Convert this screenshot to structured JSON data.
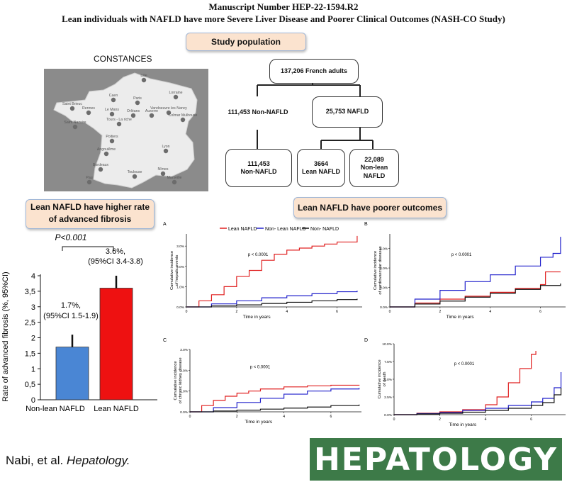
{
  "header": {
    "manuscript": "Manuscript Number HEP-22-1594.R2",
    "title": "Lean individuals with NAFLD have more Severe Liver Disease and Poorer Clinical Outcomes (NASH-CO Study)"
  },
  "study_population": {
    "pill": "Study population",
    "map_title": "CONSTANCES",
    "cities": [
      "Lille",
      "Caen",
      "Paris",
      "Lorraine",
      "Vandoeuvre les Nancy",
      "Saint Brieuc",
      "Rennes",
      "Le Mans",
      "Orléans",
      "Auxerre",
      "Colmar Mulhouse",
      "Saint Nazaire",
      "Tours - La riche",
      "Poitiers",
      "Angoulême",
      "Lyon",
      "Bordeaux",
      "Toulouse",
      "Nîmes",
      "Pau",
      "Marseille"
    ],
    "flow": {
      "top": "137,206 French adults",
      "left": "111,453 Non-NAFLD",
      "right": "25,753 NAFLD",
      "bottom_left_1": "111,453",
      "bottom_left_2": "Non-NAFLD",
      "bottom_mid_1": "3664",
      "bottom_mid_2": "Lean NAFLD",
      "bottom_right_1": "22,089",
      "bottom_right_2": "Non-lean NAFLD"
    }
  },
  "fibrosis": {
    "pill_line1": "Lean NAFLD have higher rate",
    "pill_line2": "of advanced fibrosis",
    "pvalue": "P<0.001",
    "ylabel": "Rate of advanced fibrosis (%, 95%CI)",
    "bar1_label_1": "1.7%,",
    "bar1_label_2": "(95%CI 1.5-1.9)",
    "bar2_label_1": "3.6%,",
    "bar2_label_2": "(95%CI 3.4-3.8)",
    "colors": {
      "non_lean": "#4a86d4",
      "lean": "#ee1111"
    }
  },
  "outcomes": {
    "pill": "Lean NAFLD have poorer outcomes",
    "legend": [
      "Lean NAFLD",
      "Non- Lean NAFLD",
      "Non- NAFLD"
    ],
    "panel_letters": [
      "A",
      "B",
      "C",
      "D"
    ],
    "pvalue_A": "p < 0.0001",
    "pvalue_B": "p < 0.0001",
    "pvalue_C": "p < 0.0001",
    "pvalue_D": "p < 0.0001",
    "xlabel": "Time in years",
    "ylabel_A": [
      "Cumulative incidence",
      "of hepatic events"
    ],
    "ylabel_B": [
      "Cumulative incidence",
      "of cardiovascular diseases"
    ],
    "ylabel_C": [
      "Cumulative incidence",
      "of chronic kidney disease"
    ],
    "ylabel_D": [
      "Cumulative incidence",
      "of death"
    ],
    "colors": {
      "lean": "#e02020",
      "non_lean": "#2222cc",
      "non_nafld": "#111111"
    }
  },
  "footer": {
    "ref_prefix": "Nabi, et al. ",
    "ref_journal": "Hepatology.",
    "logo": "HEPATOLOGY"
  },
  "chart_data": [
    {
      "type": "bar",
      "categories": [
        "Non-lean NAFLD",
        "Lean NAFLD"
      ],
      "values": [
        1.7,
        3.6
      ],
      "ci": [
        [
          1.5,
          1.9
        ],
        [
          3.4,
          3.8
        ]
      ],
      "ylabel": "Rate of advanced fibrosis (%, 95%CI)",
      "ylim": [
        0,
        4
      ],
      "yticks": [
        "0",
        "0,5",
        "1",
        "1,5",
        "2",
        "2,5",
        "3",
        "3,5",
        "4"
      ],
      "annotations": [
        "P<0.001",
        "1.7%, (95%CI 1.5-1.9)",
        "3.6%, (95%CI 3.4-3.8)"
      ]
    },
    {
      "type": "line",
      "panel": "A",
      "ylabel": "Cumulative incidence of hepatic events",
      "xlabel": "Time in years",
      "yticks": [
        "0.0%",
        "1.0%",
        "2.0%",
        "3.0%"
      ],
      "xticks": [
        "0",
        "2",
        "4",
        "6"
      ],
      "xlim": [
        0,
        7
      ],
      "ylim": [
        0,
        3.6
      ],
      "series": [
        {
          "name": "Lean NAFLD",
          "x": [
            0,
            0.5,
            1,
            1.5,
            2,
            2.5,
            3,
            3.5,
            4,
            4.5,
            5,
            5.5,
            6,
            6.5,
            6.8
          ],
          "y": [
            0,
            0.3,
            0.6,
            1.0,
            1.5,
            1.8,
            2.3,
            2.6,
            2.8,
            2.9,
            3.0,
            3.1,
            3.2,
            3.2,
            3.5
          ]
        },
        {
          "name": "Non- Lean NAFLD",
          "x": [
            0,
            1,
            2,
            3,
            4,
            5,
            6,
            6.8
          ],
          "y": [
            0,
            0.15,
            0.3,
            0.45,
            0.55,
            0.65,
            0.75,
            0.8
          ]
        },
        {
          "name": "Non- NAFLD",
          "x": [
            0,
            1,
            2,
            3,
            4,
            5,
            6,
            6.8
          ],
          "y": [
            0,
            0.05,
            0.1,
            0.17,
            0.23,
            0.3,
            0.36,
            0.4
          ]
        }
      ]
    },
    {
      "type": "line",
      "panel": "B",
      "ylabel": "Cumulative incidence of cardiovascular diseases",
      "xlabel": "Time in years",
      "yticks": [
        "0.0%",
        "2.0%",
        "4.0%",
        "6.0%"
      ],
      "xticks": [
        "0",
        "2",
        "4",
        "6"
      ],
      "xlim": [
        0,
        7
      ],
      "ylim": [
        0,
        7.5
      ],
      "series": [
        {
          "name": "Lean NAFLD",
          "x": [
            0,
            1,
            2,
            3,
            4,
            5,
            6,
            6.2,
            6.8
          ],
          "y": [
            0,
            0.4,
            0.8,
            1.1,
            1.5,
            1.9,
            2.3,
            3.6,
            3.6
          ]
        },
        {
          "name": "Non- Lean NAFLD",
          "x": [
            0,
            1,
            2,
            3,
            4,
            5,
            6,
            6.5,
            6.8
          ],
          "y": [
            0,
            0.8,
            1.7,
            2.6,
            3.3,
            4.2,
            5.1,
            5.5,
            7.2
          ]
        },
        {
          "name": "Non- NAFLD",
          "x": [
            0,
            1,
            2,
            3,
            4,
            5,
            6,
            6.8
          ],
          "y": [
            0,
            0.3,
            0.6,
            1.0,
            1.4,
            1.8,
            2.2,
            2.4
          ]
        }
      ]
    },
    {
      "type": "line",
      "panel": "C",
      "ylabel": "Cumulative incidence of chronic kidney disease",
      "xlabel": "Time in years",
      "yticks": [
        "0.0%",
        "1.0%",
        "2.0%",
        "3.0%"
      ],
      "xticks": [
        "0",
        "2",
        "4",
        "6"
      ],
      "xlim": [
        0,
        7.3
      ],
      "ylim": [
        0,
        3
      ],
      "series": [
        {
          "name": "Lean NAFLD",
          "x": [
            0,
            0.5,
            1,
            1.5,
            2,
            2.5,
            3,
            4,
            5,
            6,
            7.2
          ],
          "y": [
            0,
            0.3,
            0.55,
            0.75,
            0.9,
            1.0,
            1.1,
            1.2,
            1.25,
            1.28,
            1.3
          ]
        },
        {
          "name": "Non- Lean NAFLD",
          "x": [
            0,
            1,
            2,
            3,
            4,
            5,
            6,
            7.2
          ],
          "y": [
            0,
            0.2,
            0.45,
            0.65,
            0.85,
            1.0,
            1.1,
            1.15
          ]
        },
        {
          "name": "Non- NAFLD",
          "x": [
            0,
            1,
            2,
            3,
            4,
            5,
            6,
            7.2
          ],
          "y": [
            0,
            0.04,
            0.08,
            0.13,
            0.18,
            0.23,
            0.3,
            0.35
          ]
        }
      ]
    },
    {
      "type": "line",
      "panel": "D",
      "ylabel": "Cumulative incidence of death",
      "xlabel": "Time in years",
      "yticks": [
        "0.0%",
        "2.5%",
        "5.0%",
        "7.5%",
        "10.0%"
      ],
      "xticks": [
        "0",
        "2",
        "4",
        "6"
      ],
      "xlim": [
        0,
        7.5
      ],
      "ylim": [
        0,
        10
      ],
      "series": [
        {
          "name": "Lean NAFLD",
          "x": [
            0,
            1,
            2,
            3,
            4,
            4.5,
            5,
            5.5,
            6,
            6.2
          ],
          "y": [
            0,
            0.2,
            0.4,
            0.7,
            1.4,
            2.5,
            4.5,
            6.5,
            8.5,
            9.0
          ]
        },
        {
          "name": "Non- Lean NAFLD",
          "x": [
            0,
            1,
            2,
            3,
            4,
            5,
            6,
            6.5,
            7,
            7.3
          ],
          "y": [
            0,
            0.15,
            0.3,
            0.6,
            0.9,
            1.3,
            1.8,
            2.3,
            3.8,
            6.0
          ]
        },
        {
          "name": "Non- NAFLD",
          "x": [
            0,
            1,
            2,
            3,
            4,
            5,
            6,
            6.5,
            7,
            7.3
          ],
          "y": [
            0,
            0.1,
            0.2,
            0.35,
            0.6,
            0.9,
            1.3,
            1.7,
            2.8,
            3.8
          ]
        }
      ]
    }
  ]
}
